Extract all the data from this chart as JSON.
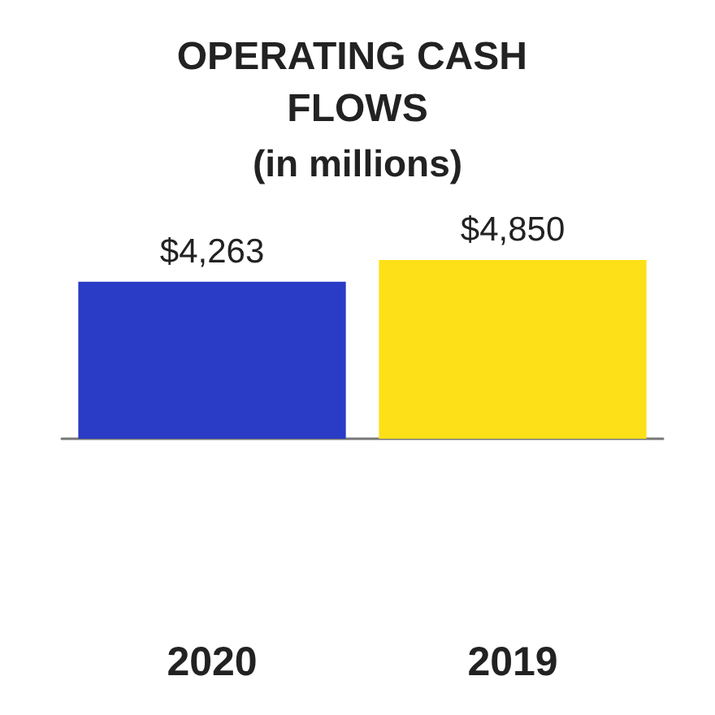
{
  "chart_data": {
    "type": "bar",
    "title": "OPERATING CASH FLOWS",
    "subtitle": "(in millions)",
    "categories": [
      "2020",
      "2019"
    ],
    "values": [
      4263,
      4850
    ],
    "colors": [
      "#2a3bc6",
      "#fde017"
    ],
    "value_labels": [
      "$4,263",
      "$4,850"
    ]
  }
}
